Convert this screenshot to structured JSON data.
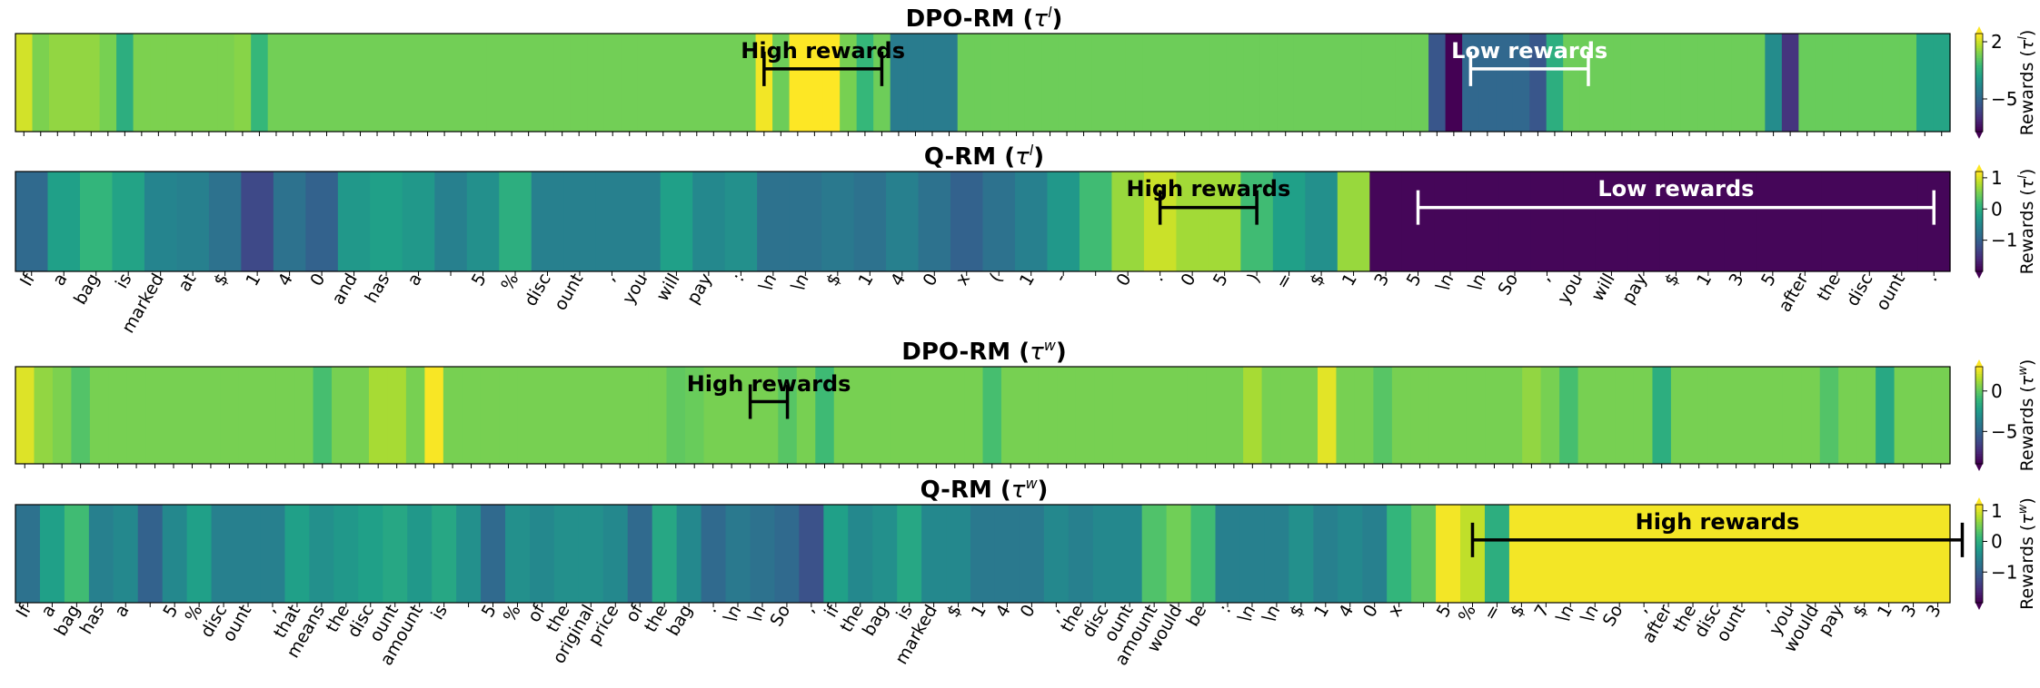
{
  "chart_data": [
    {
      "type": "heatmap",
      "title": "DPO-RM (τ^l)",
      "title_main": "DPO-RM (",
      "title_sym": "τ",
      "title_sup": "l",
      "title_end": ")",
      "colorbar_label": "Rewards (τ^l)",
      "colorbar_ticks": [
        "2",
        "−5"
      ],
      "colorbar_tick_values": [
        2,
        -5
      ],
      "color_range": [
        -9,
        3
      ],
      "tokens": [],
      "values": [
        2.2,
        0.6,
        1.0,
        1.0,
        1.0,
        0.5,
        -1.5,
        0.6,
        0.6,
        0.6,
        0.6,
        0.6,
        0.6,
        0.8,
        -1.0,
        0.4,
        0.4,
        0.4,
        0.4,
        0.4,
        0.4,
        0.4,
        0.4,
        0.4,
        0.4,
        0.4,
        0.4,
        0.4,
        0.4,
        0.4,
        0.4,
        0.4,
        0.4,
        0.4,
        0.4,
        0.4,
        0.4,
        0.4,
        0.4,
        0.4,
        0.4,
        0.4,
        0.4,
        0.4,
        2.8,
        0.3,
        3.0,
        3.2,
        3.4,
        0.5,
        -1.0,
        0.3,
        -4.0,
        -4.0,
        -4.0,
        -4.0,
        0.3,
        0.3,
        0.3,
        0.3,
        0.3,
        0.3,
        0.3,
        0.3,
        0.3,
        0.3,
        0.3,
        0.3,
        0.3,
        0.3,
        0.3,
        0.3,
        0.3,
        0.3,
        0.3,
        0.3,
        0.3,
        0.3,
        0.3,
        0.3,
        0.3,
        0.3,
        0.3,
        0.3,
        -5.8,
        -9.5,
        -5.0,
        -5.0,
        -5.0,
        -5.0,
        -5.8,
        -1.5,
        0.3,
        0.3,
        0.3,
        0.3,
        0.3,
        0.3,
        0.3,
        0.3,
        0.3,
        0.3,
        0.3,
        0.3,
        -3.2,
        -7.2,
        0.2,
        0.2,
        0.2,
        0.2,
        0.2,
        0.2,
        0.2,
        -2.0,
        -2.0
      ],
      "annotations": [
        {
          "text": "High rewards",
          "from": 44,
          "to": 51,
          "color": "#000000"
        },
        {
          "text": "Low rewards",
          "from": 86,
          "to": 93,
          "color": "#ffffff"
        }
      ]
    },
    {
      "type": "heatmap",
      "title": "Q-RM (τ^l)",
      "title_main": "Q-RM (",
      "title_sym": "τ",
      "title_sup": "l",
      "title_end": ")",
      "colorbar_label": "Rewards (τ^l)",
      "colorbar_ticks": [
        "1",
        "0",
        "−1"
      ],
      "colorbar_tick_values": [
        1,
        0,
        -1
      ],
      "color_range": [
        -2,
        1.2
      ],
      "tokens": [
        "If",
        "a",
        "bag",
        "is",
        "marked",
        "at",
        "$",
        "1",
        "4",
        "0",
        "and",
        "has",
        "a",
        "",
        "5",
        "%",
        "disc",
        "ount",
        ",",
        "you",
        "will",
        "pay",
        ":",
        "\\n",
        "\\n",
        "$",
        "1",
        "4",
        "0",
        "x",
        "(",
        "1",
        "-",
        "",
        "0",
        ".",
        "0",
        "5",
        ")",
        "=",
        "$",
        "1",
        "3",
        "5",
        "\\n",
        "\\n",
        "So",
        ",",
        "you",
        "will",
        "pay",
        "$",
        "1",
        "3",
        "5",
        "after",
        "the",
        "disc",
        "ount",
        "."
      ],
      "values": [
        -0.9,
        -0.2,
        0.1,
        -0.15,
        -0.55,
        -0.6,
        -0.8,
        -1.3,
        -0.8,
        -1.0,
        -0.3,
        -0.2,
        -0.3,
        -0.6,
        -0.4,
        0.0,
        -0.6,
        -0.6,
        -0.6,
        -0.6,
        -0.2,
        -0.5,
        -0.4,
        -0.8,
        -0.8,
        -0.7,
        -0.8,
        -0.6,
        -0.8,
        -1.0,
        -0.8,
        -0.6,
        -0.3,
        0.2,
        0.7,
        0.95,
        0.75,
        0.75,
        0.2,
        -0.2,
        -0.4,
        0.7,
        -1.95,
        -1.95,
        -1.95,
        -1.95,
        -1.95,
        -1.95,
        -1.95,
        -1.95,
        -1.95,
        -1.95,
        -1.95,
        -1.95,
        -1.95,
        -1.95,
        -1.95,
        -1.95,
        -1.95,
        -1.95
      ],
      "annotations": [
        {
          "text": "High rewards",
          "from": 35,
          "to": 38,
          "color": "#000000"
        },
        {
          "text": "Low rewards",
          "from": 43,
          "to": 59,
          "color": "#ffffff"
        }
      ]
    },
    {
      "type": "heatmap",
      "title": "DPO-RM (τ^w)",
      "title_main": "DPO-RM (",
      "title_sym": "τ",
      "title_sup": "w",
      "title_end": ")",
      "colorbar_label": "Rewards (τ^w)",
      "colorbar_ticks": [
        "0",
        "−5"
      ],
      "colorbar_tick_values": [
        0,
        -5
      ],
      "color_range": [
        -9,
        3
      ],
      "tokens": [],
      "values": [
        2.4,
        1.0,
        0.6,
        -0.3,
        0.5,
        0.5,
        0.5,
        0.5,
        0.5,
        0.5,
        0.5,
        0.5,
        0.5,
        0.5,
        0.5,
        0.5,
        -0.6,
        0.5,
        0.5,
        1.4,
        1.4,
        0.5,
        2.9,
        0.5,
        0.5,
        0.5,
        0.5,
        0.5,
        0.5,
        0.5,
        0.5,
        0.5,
        0.5,
        0.5,
        0.5,
        0.0,
        0.2,
        0.5,
        0.5,
        0.5,
        0.5,
        -0.2,
        0.5,
        -0.8,
        0.5,
        0.5,
        0.5,
        0.5,
        0.5,
        0.5,
        0.5,
        0.5,
        -0.6,
        0.5,
        0.5,
        0.5,
        0.5,
        0.5,
        0.5,
        0.5,
        0.5,
        0.5,
        0.5,
        0.5,
        0.5,
        0.5,
        1.4,
        0.5,
        0.5,
        0.5,
        2.5,
        0.5,
        0.5,
        -0.2,
        0.5,
        0.5,
        0.5,
        0.5,
        0.5,
        0.5,
        0.5,
        1.0,
        0.5,
        -0.6,
        0.5,
        0.5,
        0.5,
        0.5,
        -1.5,
        0.5,
        0.5,
        0.5,
        0.5,
        0.5,
        0.5,
        0.5,
        0.5,
        -0.3,
        0.5,
        0.5,
        -1.8,
        0.5,
        0.5,
        0.5
      ],
      "annotations": [
        {
          "text": "High rewards",
          "from": 39,
          "to": 41,
          "color": "#000000"
        }
      ]
    },
    {
      "type": "heatmap",
      "title": "Q-RM (τ^w)",
      "title_main": "Q-RM (",
      "title_sym": "τ",
      "title_sup": "w",
      "title_end": ")",
      "colorbar_label": "Rewards (τ^w)",
      "colorbar_ticks": [
        "1",
        "0",
        "−1"
      ],
      "colorbar_tick_values": [
        1,
        0,
        -1
      ],
      "color_range": [
        -2,
        1.2
      ],
      "tokens": [
        "If",
        "a",
        "bag",
        "has",
        "a",
        "",
        "5",
        "%",
        "disc",
        "ount",
        ",",
        "that",
        "means",
        "the",
        "disc",
        "ount",
        "amount",
        "is",
        "",
        "5",
        "%",
        "of",
        "the",
        "original",
        "price",
        "of",
        "the",
        "bag",
        ".",
        "\\n",
        "\\n",
        "So",
        ",",
        "if",
        "the",
        "bag",
        "is",
        "marked",
        "$",
        "1",
        "4",
        "0",
        ",",
        "the",
        "disc",
        "ount",
        "amount",
        "would",
        "be",
        ":",
        "\\n",
        "\\n",
        "$",
        "1",
        "4",
        "0",
        "x",
        "",
        "5",
        "%",
        "=",
        "$",
        "7",
        "\\n",
        "\\n",
        "So",
        ",",
        "after",
        "the",
        "disc",
        "ount",
        ",",
        "you",
        "would",
        "pay",
        "$",
        "1",
        "3",
        "3"
      ],
      "values": [
        -0.8,
        -0.2,
        0.2,
        -0.6,
        -0.5,
        -1.0,
        -0.5,
        -0.2,
        -0.6,
        -0.6,
        -0.6,
        -0.2,
        -0.4,
        -0.3,
        -0.2,
        -0.1,
        -0.3,
        -0.1,
        -0.4,
        -0.9,
        -0.4,
        -0.5,
        -0.4,
        -0.4,
        -0.5,
        -0.9,
        -0.1,
        -0.5,
        -0.9,
        -0.7,
        -0.8,
        -0.9,
        -1.2,
        -0.2,
        -0.5,
        -0.4,
        -0.1,
        -0.5,
        -0.5,
        -0.7,
        -0.7,
        -0.7,
        -0.5,
        -0.6,
        -0.5,
        -0.5,
        0.3,
        0.5,
        0.2,
        -0.6,
        -0.6,
        -0.6,
        -0.4,
        -0.6,
        -0.5,
        -0.6,
        0.1,
        0.4,
        1.15,
        0.9,
        0.0,
        1.15,
        1.15,
        1.15,
        1.15,
        1.15,
        1.15,
        1.15,
        1.15,
        1.15,
        1.15,
        1.15,
        1.15,
        1.15,
        1.15,
        1.15,
        1.15,
        1.15,
        1.15
      ],
      "annotations": [
        {
          "text": "High rewards",
          "from": 59,
          "to": 79,
          "color": "#000000"
        }
      ]
    }
  ]
}
